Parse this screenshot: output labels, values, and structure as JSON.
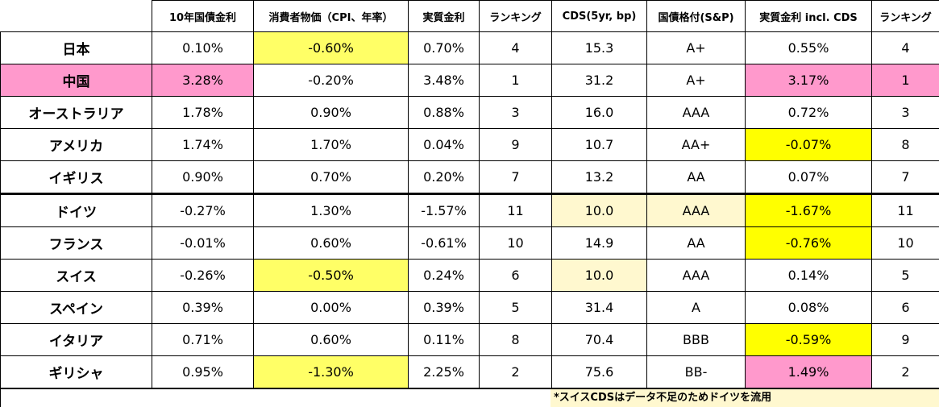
{
  "colors": {
    "yellow_highlight": "#ffff66",
    "bright_yellow_highlight": "#ffff00",
    "pink_highlight": "#ff99cc",
    "cream_highlight": "#fff8cf",
    "border": "#000000"
  },
  "headers": [
    "",
    "10年国債金利",
    "消費者物価（CPI、年率）",
    "実質金利",
    "ランキング",
    "CDS(5yr, bp)",
    "国債格付(S&P)",
    "実質金利 incl. CDS",
    "ランキング"
  ],
  "rows": [
    {
      "country": "日本",
      "bond_yield": "0.10%",
      "cpi": "-0.60%",
      "real_rate": "0.70%",
      "rank": "4",
      "cds": "15.3",
      "rating": "A+",
      "real_rate_cds": "0.55%",
      "rank_cds": "4"
    },
    {
      "country": "中国",
      "bond_yield": "3.28%",
      "cpi": "-0.20%",
      "real_rate": "3.48%",
      "rank": "1",
      "cds": "31.2",
      "rating": "A+",
      "real_rate_cds": "3.17%",
      "rank_cds": "1"
    },
    {
      "country": "オーストラリア",
      "bond_yield": "1.78%",
      "cpi": "0.90%",
      "real_rate": "0.88%",
      "rank": "3",
      "cds": "16.0",
      "rating": "AAA",
      "real_rate_cds": "0.72%",
      "rank_cds": "3"
    },
    {
      "country": "アメリカ",
      "bond_yield": "1.74%",
      "cpi": "1.70%",
      "real_rate": "0.04%",
      "rank": "9",
      "cds": "10.7",
      "rating": "AA+",
      "real_rate_cds": "-0.07%",
      "rank_cds": "8"
    },
    {
      "country": "イギリス",
      "bond_yield": "0.90%",
      "cpi": "0.70%",
      "real_rate": "0.20%",
      "rank": "7",
      "cds": "13.2",
      "rating": "AA",
      "real_rate_cds": "0.07%",
      "rank_cds": "7"
    },
    {
      "country": "ドイツ",
      "bond_yield": "-0.27%",
      "cpi": "1.30%",
      "real_rate": "-1.57%",
      "rank": "11",
      "cds": "10.0",
      "rating": "AAA",
      "real_rate_cds": "-1.67%",
      "rank_cds": "11"
    },
    {
      "country": "フランス",
      "bond_yield": "-0.01%",
      "cpi": "0.60%",
      "real_rate": "-0.61%",
      "rank": "10",
      "cds": "14.9",
      "rating": "AA",
      "real_rate_cds": "-0.76%",
      "rank_cds": "10"
    },
    {
      "country": "スイス",
      "bond_yield": "-0.26%",
      "cpi": "-0.50%",
      "real_rate": "0.24%",
      "rank": "6",
      "cds": "10.0",
      "rating": "AAA",
      "real_rate_cds": "0.14%",
      "rank_cds": "5"
    },
    {
      "country": "スペイン",
      "bond_yield": "0.39%",
      "cpi": "0.00%",
      "real_rate": "0.39%",
      "rank": "5",
      "cds": "31.4",
      "rating": "A",
      "real_rate_cds": "0.08%",
      "rank_cds": "6"
    },
    {
      "country": "イタリア",
      "bond_yield": "0.71%",
      "cpi": "0.60%",
      "real_rate": "0.11%",
      "rank": "8",
      "cds": "70.4",
      "rating": "BBB",
      "real_rate_cds": "-0.59%",
      "rank_cds": "9"
    },
    {
      "country": "ギリシャ",
      "bond_yield": "0.95%",
      "cpi": "-1.30%",
      "real_rate": "2.25%",
      "rank": "2",
      "cds": "75.6",
      "rating": "BB-",
      "real_rate_cds": "1.49%",
      "rank_cds": "2"
    }
  ],
  "footnote": "*スイスCDSはデータ不足のためドイツを流用"
}
